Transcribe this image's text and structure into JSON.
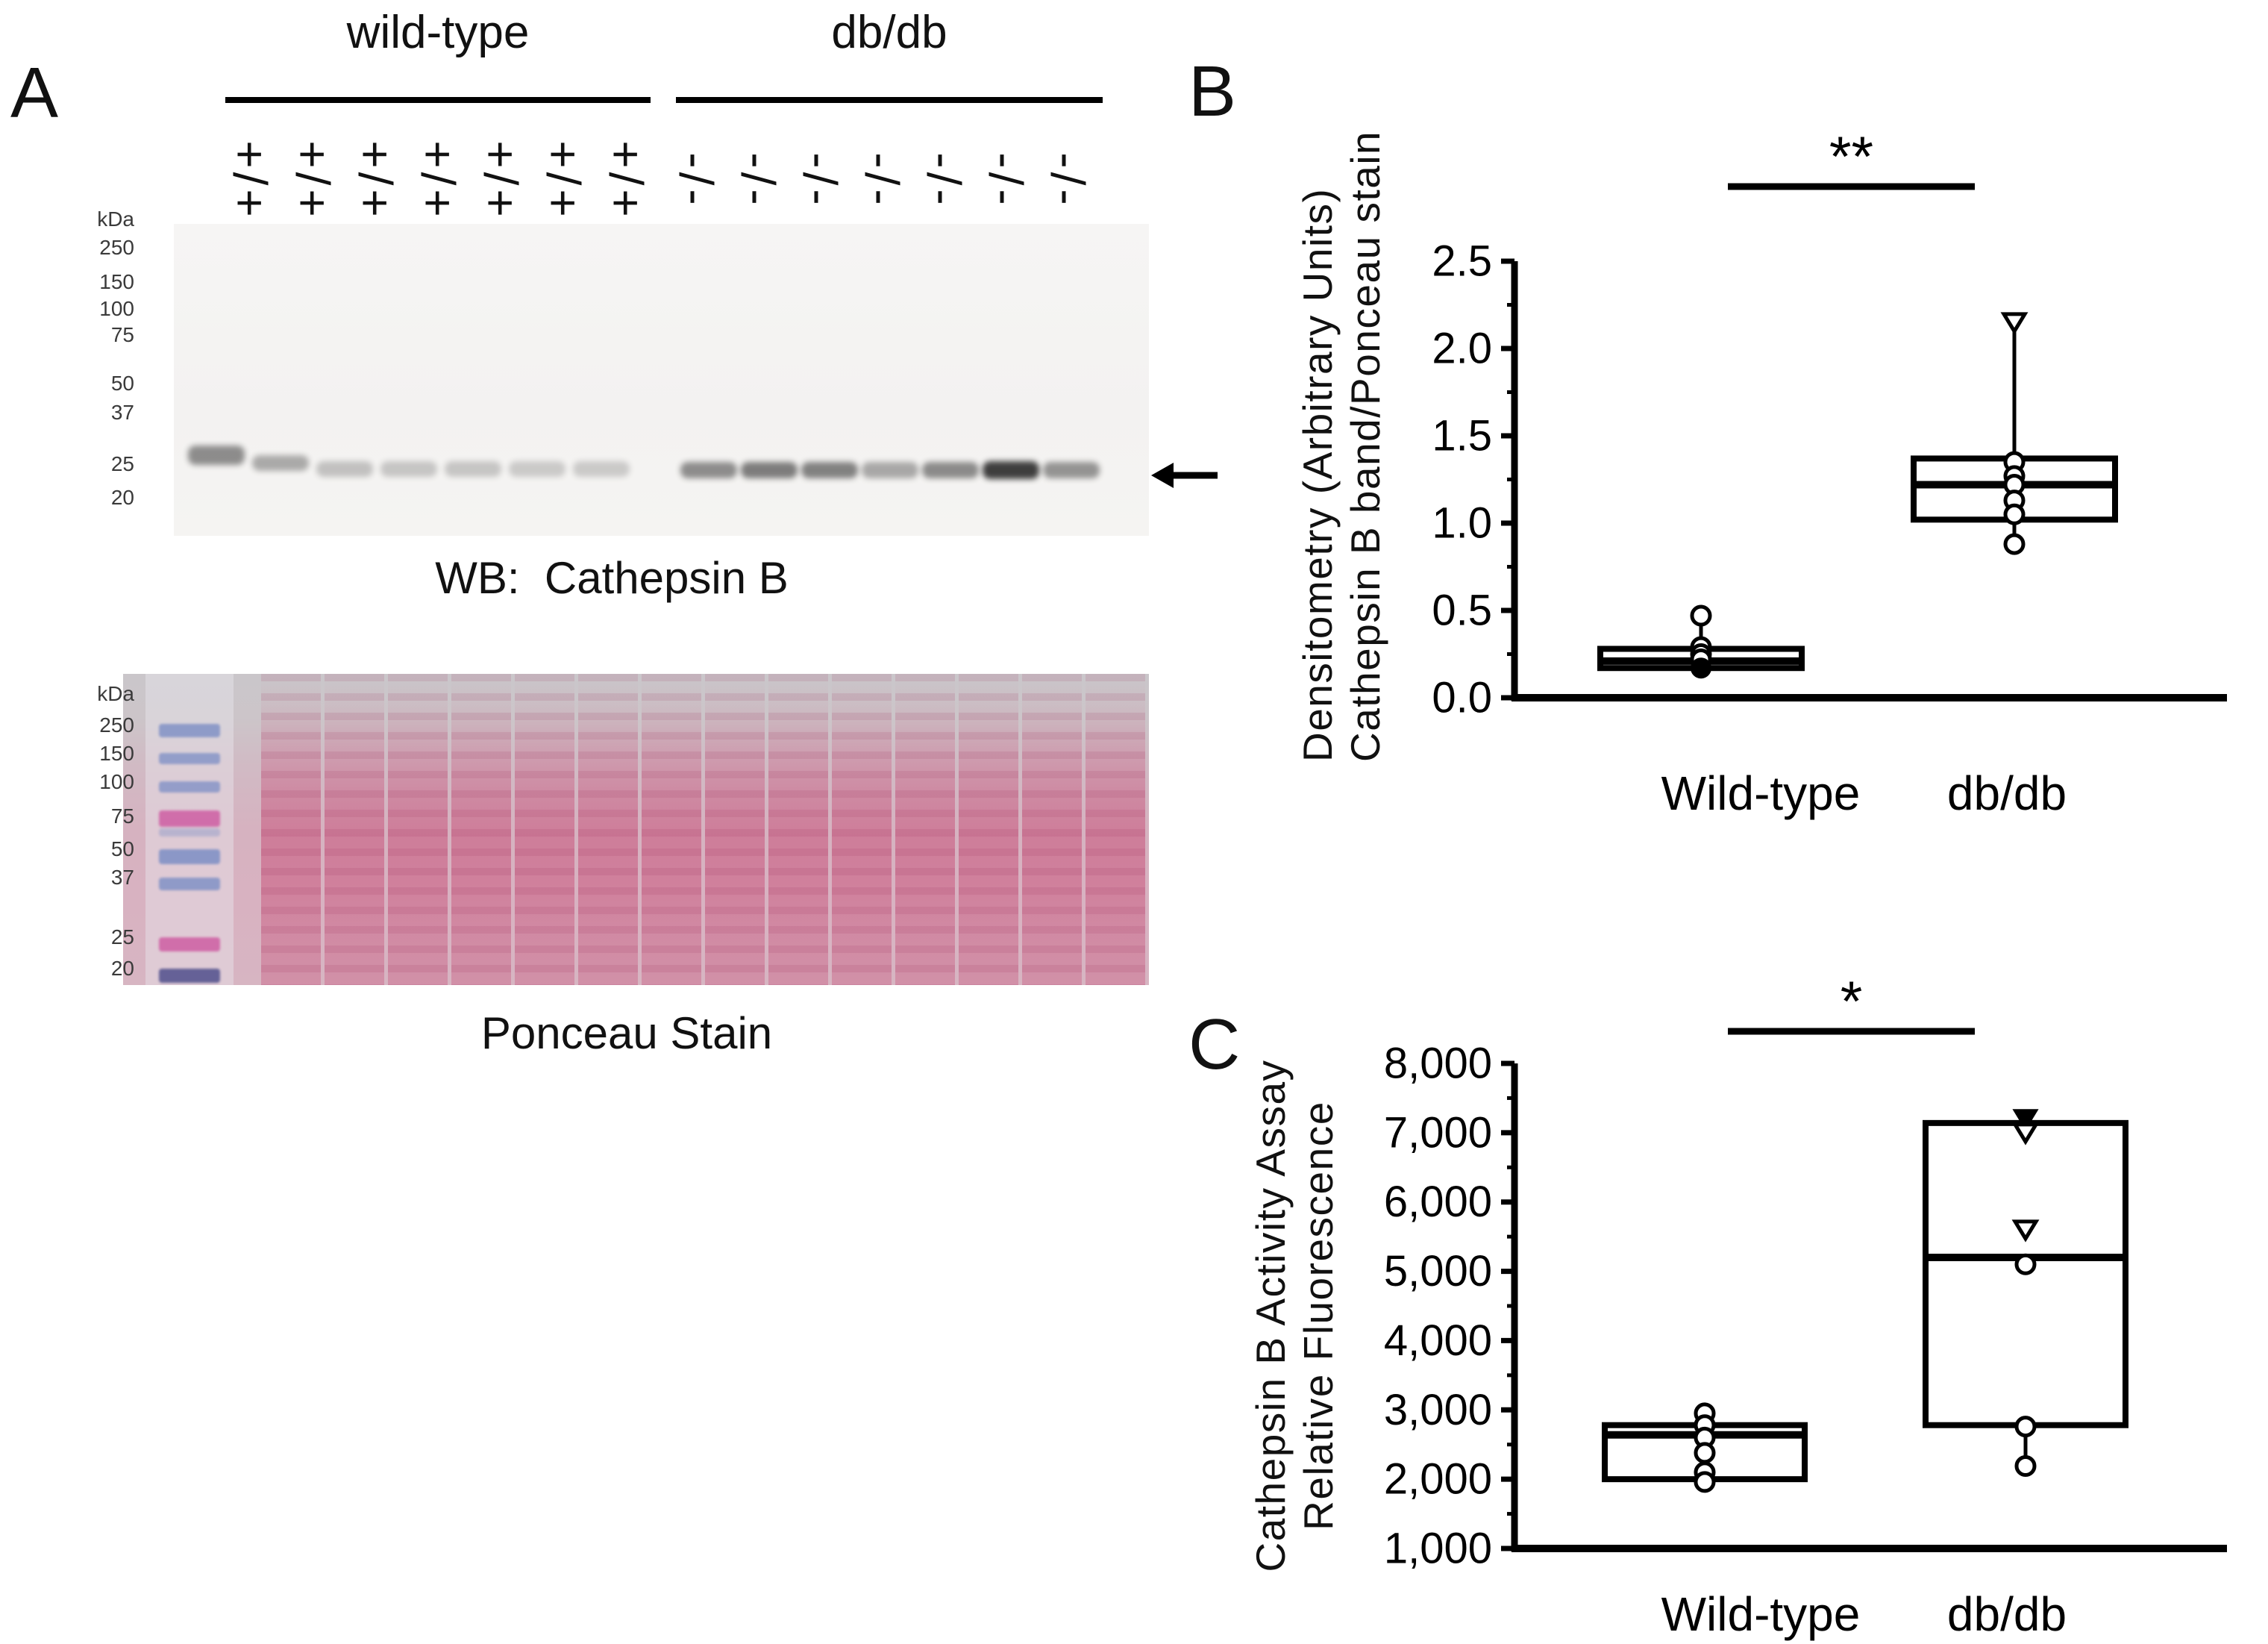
{
  "panel_a": {
    "label": "A",
    "groups": [
      {
        "label": "wild-type",
        "genotype_label": "+/+",
        "lanes": 7
      },
      {
        "label": "db/db",
        "genotype_label": "-/-",
        "lanes": 7
      }
    ],
    "wb_ladder": {
      "unit": "kDa",
      "marks": [
        "250",
        "150",
        "100",
        "75",
        "50",
        "37",
        "25",
        "20"
      ]
    },
    "wb_caption": "WB:  Cathepsin B",
    "wb_band_arrow": "left-arrow",
    "wb_bands": [
      {
        "lane": 1,
        "group": "wild-type",
        "intensity": 0.45,
        "y": 610,
        "h": 26
      },
      {
        "lane": 2,
        "group": "wild-type",
        "intensity": 0.32,
        "y": 620,
        "h": 21
      },
      {
        "lane": 3,
        "group": "wild-type",
        "intensity": 0.22,
        "y": 628,
        "h": 21
      },
      {
        "lane": 4,
        "group": "wild-type",
        "intensity": 0.2,
        "y": 628,
        "h": 21
      },
      {
        "lane": 5,
        "group": "wild-type",
        "intensity": 0.2,
        "y": 628,
        "h": 21
      },
      {
        "lane": 6,
        "group": "wild-type",
        "intensity": 0.18,
        "y": 628,
        "h": 21
      },
      {
        "lane": 7,
        "group": "wild-type",
        "intensity": 0.18,
        "y": 628,
        "h": 21
      },
      {
        "lane": 8,
        "group": "db/db",
        "intensity": 0.45,
        "y": 630,
        "h": 22
      },
      {
        "lane": 9,
        "group": "db/db",
        "intensity": 0.52,
        "y": 630,
        "h": 22
      },
      {
        "lane": 10,
        "group": "db/db",
        "intensity": 0.5,
        "y": 630,
        "h": 22
      },
      {
        "lane": 11,
        "group": "db/db",
        "intensity": 0.33,
        "y": 630,
        "h": 22
      },
      {
        "lane": 12,
        "group": "db/db",
        "intensity": 0.46,
        "y": 630,
        "h": 22
      },
      {
        "lane": 13,
        "group": "db/db",
        "intensity": 0.8,
        "y": 630,
        "h": 24
      },
      {
        "lane": 14,
        "group": "db/db",
        "intensity": 0.42,
        "y": 630,
        "h": 22
      }
    ],
    "ponceau_ladder": {
      "unit": "kDa",
      "marks": [
        "250",
        "150",
        "100",
        "75",
        "50",
        "37",
        "25",
        "20"
      ]
    },
    "ponceau_caption": "Ponceau Stain"
  },
  "colors": {
    "ponceau_pink": "#c95a80",
    "ladder_blue": "#8292c6",
    "ladder_magenta": "#cf64a6",
    "ladder_dark_blue": "#5f5c94",
    "band_color": "#111111"
  },
  "chart_data": [
    {
      "panel": "B",
      "type": "box",
      "title": "",
      "ylabel_lines": [
        "Densitometry (Arbitrary Units)",
        "Cathepsin B band/Ponceau stain"
      ],
      "categories": [
        "Wild-type",
        "db/db"
      ],
      "ylim": [
        0,
        2.5
      ],
      "yticks": [
        0,
        0.5,
        1.0,
        1.5,
        2.0,
        2.5
      ],
      "ytick_labels": [
        "0.0",
        "0.5",
        "1.0",
        "1.5",
        "2.0",
        "2.5"
      ],
      "grid": false,
      "significance": "**",
      "series": [
        {
          "name": "Wild-type",
          "box": {
            "whisker_low": 0.15,
            "q1": 0.17,
            "median": 0.21,
            "q3": 0.28,
            "whisker_high": 0.47
          },
          "points": [
            {
              "value": 0.47,
              "marker": "circle-open"
            },
            {
              "value": 0.29,
              "marker": "circle-open"
            },
            {
              "value": 0.25,
              "marker": "circle-open"
            },
            {
              "value": 0.22,
              "marker": "circle-open"
            },
            {
              "value": 0.17,
              "marker": "circle-filled"
            }
          ]
        },
        {
          "name": "db/db",
          "box": {
            "whisker_low": 0.88,
            "q1": 1.02,
            "median": 1.22,
            "q3": 1.37,
            "whisker_high": 2.15
          },
          "points": [
            {
              "value": 2.15,
              "marker": "triangle-open"
            },
            {
              "value": 1.35,
              "marker": "circle-open"
            },
            {
              "value": 1.27,
              "marker": "circle-open"
            },
            {
              "value": 1.22,
              "marker": "circle-open"
            },
            {
              "value": 1.13,
              "marker": "circle-open"
            },
            {
              "value": 1.05,
              "marker": "circle-open"
            },
            {
              "value": 0.88,
              "marker": "circle-open"
            }
          ]
        }
      ]
    },
    {
      "panel": "C",
      "type": "box",
      "title": "",
      "ylabel_lines": [
        "Cathepsin B Activity Assay",
        "Relative Fluorescence"
      ],
      "categories": [
        "Wild-type",
        "db/db"
      ],
      "ylim": [
        1000,
        8000
      ],
      "yticks": [
        1000,
        2000,
        3000,
        4000,
        5000,
        6000,
        7000,
        8000
      ],
      "ytick_labels": [
        "1,000",
        "2,000",
        "3,000",
        "4,000",
        "5,000",
        "6,000",
        "7,000",
        "8,000"
      ],
      "grid": false,
      "significance": "*",
      "series": [
        {
          "name": "Wild-type",
          "box": {
            "whisker_low": 1950,
            "q1": 2000,
            "median": 2640,
            "q3": 2780,
            "whisker_high": 2950
          },
          "points": [
            {
              "value": 2950,
              "marker": "circle-open"
            },
            {
              "value": 2780,
              "marker": "circle-open"
            },
            {
              "value": 2600,
              "marker": "circle-open"
            },
            {
              "value": 2380,
              "marker": "circle-open"
            },
            {
              "value": 2100,
              "marker": "circle-open"
            },
            {
              "value": 1960,
              "marker": "circle-open"
            }
          ]
        },
        {
          "name": "db/db",
          "box": {
            "whisker_low": 2190,
            "q1": 2780,
            "median": 5200,
            "q3": 7140,
            "whisker_high": 7140
          },
          "points": [
            {
              "value": 7200,
              "marker": "triangle-filled"
            },
            {
              "value": 7000,
              "marker": "triangle-open"
            },
            {
              "value": 5600,
              "marker": "triangle-open"
            },
            {
              "value": 5100,
              "marker": "circle-open"
            },
            {
              "value": 2760,
              "marker": "circle-open"
            },
            {
              "value": 2190,
              "marker": "circle-open"
            }
          ]
        }
      ]
    }
  ]
}
